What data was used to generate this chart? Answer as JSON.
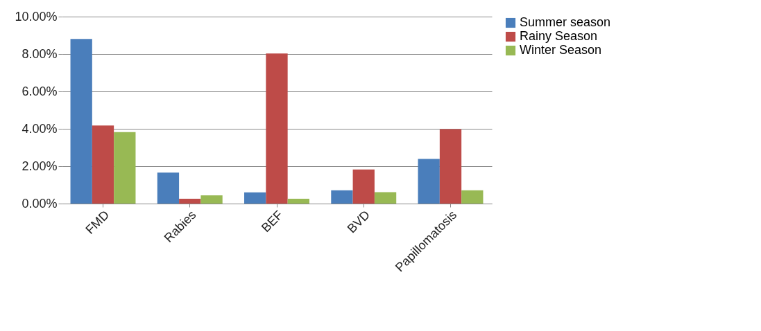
{
  "chart_data": {
    "type": "bar",
    "categories": [
      "FMD",
      "Rabies",
      "BEF",
      "BVD",
      "Papillomatosis"
    ],
    "series": [
      {
        "name": "Summer season",
        "color": "#4a7ebb",
        "values": [
          8.81,
          1.66,
          0.6,
          0.71,
          2.39
        ]
      },
      {
        "name": "Rainy Season",
        "color": "#be4b48",
        "values": [
          4.18,
          0.26,
          8.03,
          1.82,
          3.98
        ]
      },
      {
        "name": "Winter Season",
        "color": "#98b954",
        "values": [
          3.82,
          0.44,
          0.26,
          0.61,
          0.71
        ]
      }
    ],
    "ylim": [
      0,
      10
    ],
    "yticks": [
      {
        "value": 0,
        "label": "0.00%"
      },
      {
        "value": 2,
        "label": "2.00%"
      },
      {
        "value": 4,
        "label": "4.00%"
      },
      {
        "value": 6,
        "label": "6.00%"
      },
      {
        "value": 8,
        "label": "8.00%"
      },
      {
        "value": 10,
        "label": "10.00%"
      }
    ],
    "grid": "y",
    "legend": "right"
  }
}
